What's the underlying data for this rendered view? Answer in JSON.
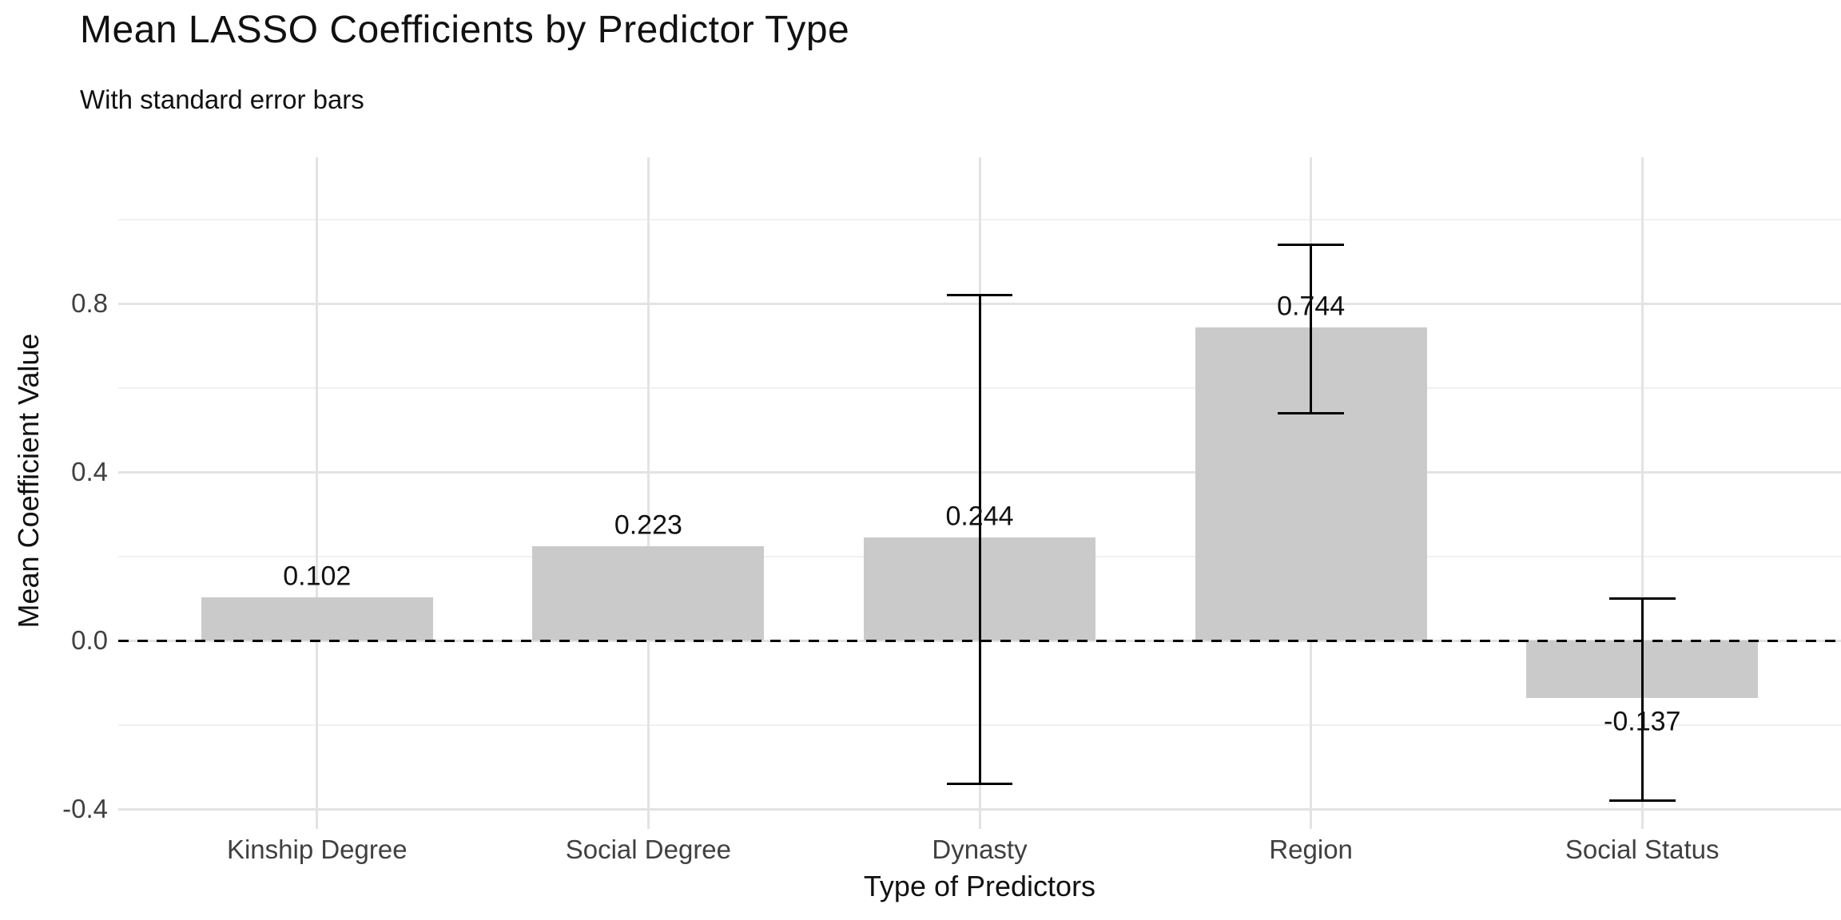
{
  "chart_data": {
    "type": "bar",
    "title": "Mean LASSO Coefficients by Predictor Type",
    "subtitle": "With standard error bars",
    "xlabel": "Type of Predictors",
    "ylabel": "Mean Coefficient Value",
    "categories": [
      "Kinship Degree",
      "Social Degree",
      "Dynasty",
      "Region",
      "Social Status"
    ],
    "values": [
      0.102,
      0.223,
      0.244,
      0.744,
      -0.137
    ],
    "value_labels": [
      "0.102",
      "0.223",
      "0.244",
      "0.744",
      "-0.137"
    ],
    "error_low": [
      null,
      null,
      -0.34,
      0.54,
      -0.38
    ],
    "error_high": [
      null,
      null,
      0.82,
      0.94,
      0.1
    ],
    "y_major_ticks": {
      "values": [
        0.8,
        0.4,
        0.0,
        -0.4
      ],
      "labels": [
        "0.8",
        "0.4",
        "0.0",
        "-0.4"
      ]
    },
    "y_minor_ticks": [
      1.0,
      0.6,
      0.2,
      -0.2
    ],
    "ylim": [
      -0.45,
      1.15
    ],
    "grid": "on",
    "legend": "none",
    "zero_line": {
      "value": 0.0,
      "style": "dashed"
    },
    "colors": {
      "bar_fill": "#cacaca",
      "error_bar": "#000000",
      "zero_line": "#000000",
      "grid_major": "#e3e3e3",
      "grid_minor": "#f0f0f0",
      "tick_label": "#404040",
      "text": "#111111",
      "background": "#ffffff"
    }
  }
}
